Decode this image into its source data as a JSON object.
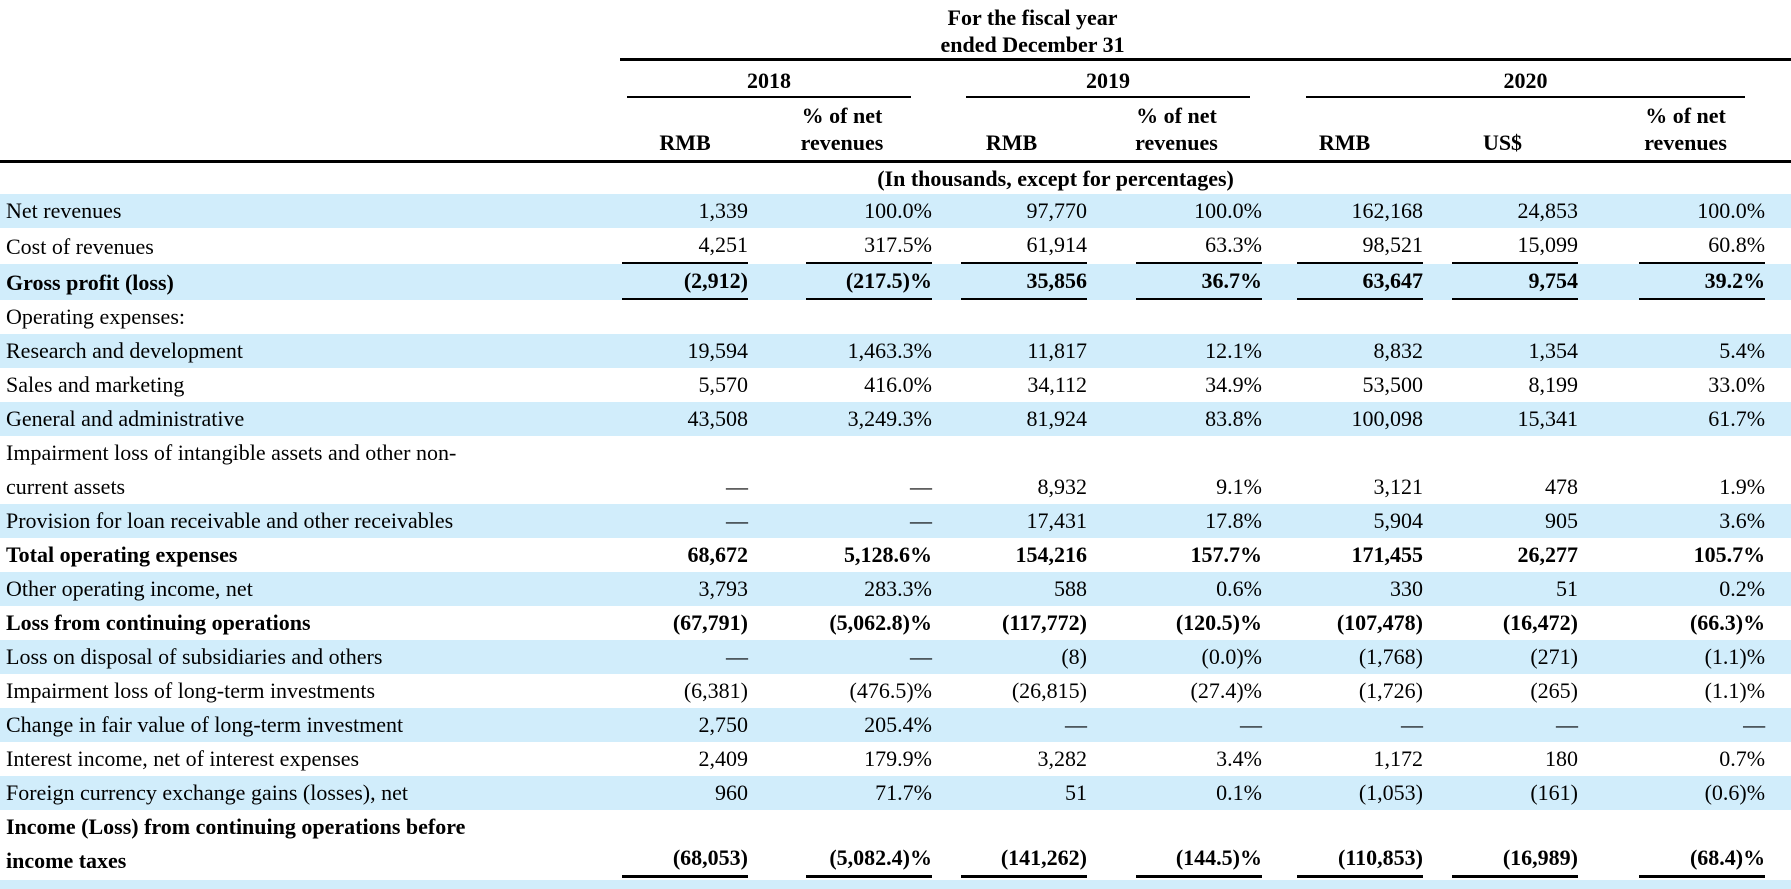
{
  "colors": {
    "row_shading": "#d1edfb",
    "text": "#000000",
    "rule": "#000000"
  },
  "table": {
    "header": {
      "period_title_line1": "For the fiscal year",
      "period_title_line2": "ended December 31",
      "year_groups": [
        {
          "year": "2018",
          "columns": [
            "RMB",
            "% of net\nrevenues"
          ]
        },
        {
          "year": "2019",
          "columns": [
            "RMB",
            "% of net\nrevenues"
          ]
        },
        {
          "year": "2020",
          "columns": [
            "RMB",
            "US$",
            "% of net\nrevenues"
          ]
        }
      ],
      "units_note": "(In thousands, except for percentages)"
    },
    "rows": [
      {
        "label": "Net revenues",
        "shaded": true,
        "bold": false,
        "values": [
          "1,339",
          "100.0%",
          "97,770",
          "100.0%",
          "162,168",
          "24,853",
          "100.0%"
        ]
      },
      {
        "label": "Cost of revenues",
        "shaded": false,
        "bold": false,
        "rule": "below",
        "values": [
          "4,251",
          "317.5%",
          "61,914",
          "63.3%",
          "98,521",
          "15,099",
          "60.8%"
        ]
      },
      {
        "label": "Gross profit (loss)",
        "shaded": true,
        "bold": true,
        "rule": "below",
        "values": [
          "(2,912)",
          "(217.5)%",
          "35,856",
          "36.7%",
          "63,647",
          "9,754",
          "39.2%"
        ]
      },
      {
        "label": "Operating expenses:",
        "shaded": false,
        "bold": false,
        "values": [
          "",
          "",
          "",
          "",
          "",
          "",
          ""
        ]
      },
      {
        "label": "Research and development",
        "shaded": true,
        "bold": false,
        "values": [
          "19,594",
          "1,463.3%",
          "11,817",
          "12.1%",
          "8,832",
          "1,354",
          "5.4%"
        ]
      },
      {
        "label": "Sales and marketing",
        "shaded": false,
        "bold": false,
        "values": [
          "5,570",
          "416.0%",
          "34,112",
          "34.9%",
          "53,500",
          "8,199",
          "33.0%"
        ]
      },
      {
        "label": "General and administrative",
        "shaded": true,
        "bold": false,
        "values": [
          "43,508",
          "3,249.3%",
          "81,924",
          "83.8%",
          "100,098",
          "15,341",
          "61.7%"
        ]
      },
      {
        "label": "Impairment loss of intangible assets and other non-",
        "label2": "current assets",
        "shaded": false,
        "bold": false,
        "values": [
          "—",
          "—",
          "8,932",
          "9.1%",
          "3,121",
          "478",
          "1.9%"
        ]
      },
      {
        "label": "Provision for loan receivable and other receivables",
        "shaded": true,
        "bold": false,
        "values": [
          "—",
          "—",
          "17,431",
          "17.8%",
          "5,904",
          "905",
          "3.6%"
        ]
      },
      {
        "label": "Total operating expenses",
        "shaded": false,
        "bold": true,
        "values": [
          "68,672",
          "5,128.6%",
          "154,216",
          "157.7%",
          "171,455",
          "26,277",
          "105.7%"
        ]
      },
      {
        "label": "Other operating income, net",
        "shaded": true,
        "bold": false,
        "values": [
          "3,793",
          "283.3%",
          "588",
          "0.6%",
          "330",
          "51",
          "0.2%"
        ]
      },
      {
        "label": "Loss from continuing operations",
        "shaded": false,
        "bold": true,
        "values": [
          "(67,791)",
          "(5,062.8)%",
          "(117,772)",
          "(120.5)%",
          "(107,478)",
          "(16,472)",
          "(66.3)%"
        ]
      },
      {
        "label": "Loss on disposal of subsidiaries and others",
        "shaded": true,
        "bold": false,
        "values": [
          "—",
          "—",
          "(8)",
          "(0.0)%",
          "(1,768)",
          "(271)",
          "(1.1)%"
        ]
      },
      {
        "label": "Impairment loss of long-term investments",
        "shaded": false,
        "bold": false,
        "values": [
          "(6,381)",
          "(476.5)%",
          "(26,815)",
          "(27.4)%",
          "(1,726)",
          "(265)",
          "(1.1)%"
        ]
      },
      {
        "label": "Change in fair value of long-term investment",
        "shaded": true,
        "bold": false,
        "values": [
          "2,750",
          "205.4%",
          "—",
          "—",
          "—",
          "—",
          "—"
        ]
      },
      {
        "label": "Interest income, net of interest expenses",
        "shaded": false,
        "bold": false,
        "values": [
          "2,409",
          "179.9%",
          "3,282",
          "3.4%",
          "1,172",
          "180",
          "0.7%"
        ]
      },
      {
        "label": "Foreign currency exchange gains (losses), net",
        "shaded": true,
        "bold": false,
        "values": [
          "960",
          "71.7%",
          "51",
          "0.1%",
          "(1,053)",
          "(161)",
          "(0.6)%"
        ]
      },
      {
        "label": "Income (Loss) from continuing operations before",
        "label2": "income taxes",
        "shaded": false,
        "bold": true,
        "rule": "below-strong",
        "values": [
          "(68,053)",
          "(5,082.4)%",
          "(141,262)",
          "(144.5)%",
          "(110,853)",
          "(16,989)",
          "(68.4)%"
        ]
      }
    ]
  }
}
